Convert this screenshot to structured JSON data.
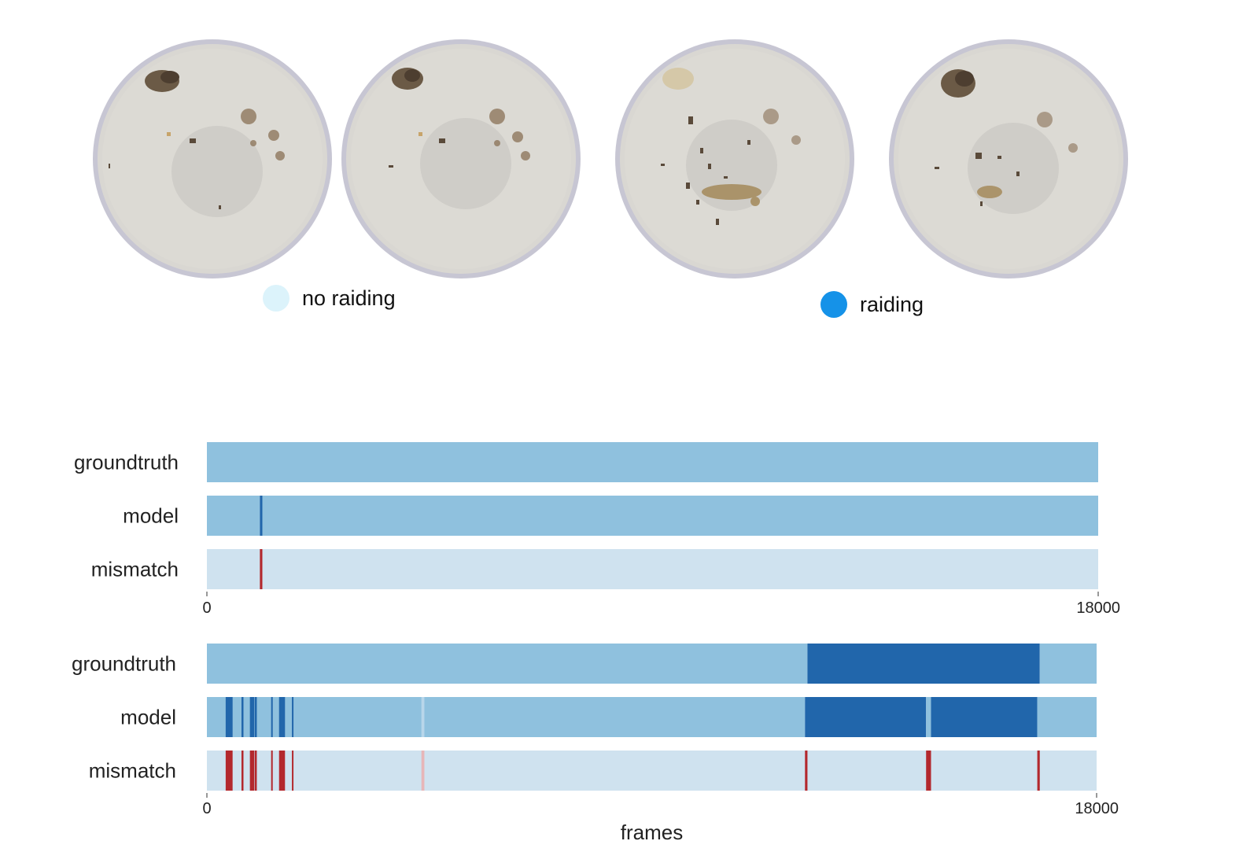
{
  "legend": {
    "items": [
      {
        "label": "no raiding",
        "color": "#dcf3fb"
      },
      {
        "label": "raiding",
        "color": "#1592e8"
      }
    ]
  },
  "images": [
    {
      "icon": "petri-dish-no-raiding-1"
    },
    {
      "icon": "petri-dish-no-raiding-2"
    },
    {
      "icon": "petri-dish-raiding-1"
    },
    {
      "icon": "petri-dish-raiding-2"
    }
  ],
  "colors": {
    "no_raiding": "#8fc1de",
    "raiding": "#2166ab",
    "mismatch_bg": "#cfe2ef",
    "mismatch": "#b3282d",
    "mismatch_faint": "#e7b6b8"
  },
  "chart_data": [
    {
      "type": "timeline",
      "xlabel": "",
      "xlim": [
        0,
        18000
      ],
      "ticks": [
        "0",
        "18000"
      ],
      "rows": [
        {
          "name": "groundtruth",
          "kind": "state",
          "segments": [
            {
              "start": 0,
              "end": 18000,
              "state": "no_raiding"
            }
          ]
        },
        {
          "name": "model",
          "kind": "state",
          "segments": [
            {
              "start": 0,
              "end": 1070,
              "state": "no_raiding"
            },
            {
              "start": 1070,
              "end": 1120,
              "state": "raiding"
            },
            {
              "start": 1120,
              "end": 18000,
              "state": "no_raiding"
            }
          ]
        },
        {
          "name": "mismatch",
          "kind": "mismatch",
          "events": [
            {
              "start": 1070,
              "end": 1120
            }
          ]
        }
      ]
    },
    {
      "type": "timeline",
      "xlabel": "frames",
      "xlim": [
        0,
        18000
      ],
      "ticks": [
        "0",
        "18000"
      ],
      "rows": [
        {
          "name": "groundtruth",
          "kind": "state",
          "segments": [
            {
              "start": 0,
              "end": 12150,
              "state": "no_raiding"
            },
            {
              "start": 12150,
              "end": 16850,
              "state": "raiding"
            },
            {
              "start": 16850,
              "end": 18000,
              "state": "no_raiding"
            }
          ]
        },
        {
          "name": "model",
          "kind": "state",
          "segments": [
            {
              "start": 0,
              "end": 12100,
              "state": "no_raiding"
            },
            {
              "start": 12100,
              "end": 14550,
              "state": "raiding"
            },
            {
              "start": 14550,
              "end": 14650,
              "state": "no_raiding"
            },
            {
              "start": 14650,
              "end": 16800,
              "state": "raiding"
            },
            {
              "start": 16800,
              "end": 18000,
              "state": "no_raiding"
            }
          ],
          "marks": [
            {
              "start": 380,
              "end": 520
            },
            {
              "start": 700,
              "end": 740
            },
            {
              "start": 870,
              "end": 960
            },
            {
              "start": 970,
              "end": 1010
            },
            {
              "start": 1300,
              "end": 1330
            },
            {
              "start": 1460,
              "end": 1580
            },
            {
              "start": 1720,
              "end": 1750
            }
          ],
          "faint": [
            {
              "start": 4340,
              "end": 4400
            }
          ]
        },
        {
          "name": "mismatch",
          "kind": "mismatch",
          "events": [
            {
              "start": 380,
              "end": 520
            },
            {
              "start": 700,
              "end": 740
            },
            {
              "start": 870,
              "end": 960
            },
            {
              "start": 970,
              "end": 1010
            },
            {
              "start": 1300,
              "end": 1330
            },
            {
              "start": 1460,
              "end": 1580
            },
            {
              "start": 1720,
              "end": 1750
            },
            {
              "start": 12100,
              "end": 12150
            },
            {
              "start": 14550,
              "end": 14650
            },
            {
              "start": 16800,
              "end": 16850
            }
          ],
          "faint": [
            {
              "start": 4340,
              "end": 4400
            }
          ]
        }
      ]
    }
  ]
}
